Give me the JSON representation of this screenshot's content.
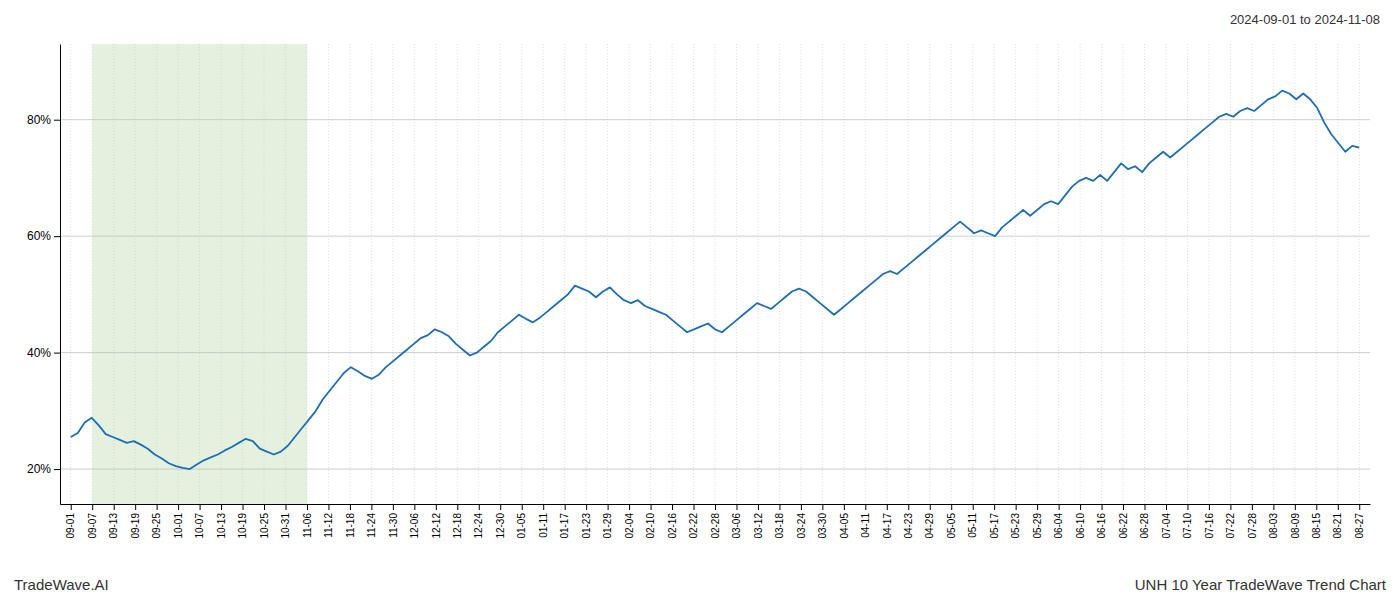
{
  "chart_data": {
    "type": "line",
    "title": "UNH 10 Year TradeWave Trend Chart",
    "subtitle": "2024-09-01 to 2024-11-08",
    "annotations": [
      "TradeWave.AI"
    ],
    "color": "#1f6eb4",
    "grid": true,
    "shade": {
      "x": [
        1,
        11
      ],
      "color": "#d4eacc"
    },
    "xlim": [
      -0.5,
      60.5
    ],
    "xticks": [
      {
        "value": 0,
        "label": "09-01"
      },
      {
        "value": 1,
        "label": "09-07"
      },
      {
        "value": 2,
        "label": "09-13"
      },
      {
        "value": 3,
        "label": "09-19"
      },
      {
        "value": 4,
        "label": "09-25"
      },
      {
        "value": 5,
        "label": "10-01"
      },
      {
        "value": 6,
        "label": "10-07"
      },
      {
        "value": 7,
        "label": "10-13"
      },
      {
        "value": 8,
        "label": "10-19"
      },
      {
        "value": 9,
        "label": "10-25"
      },
      {
        "value": 10,
        "label": "10-31"
      },
      {
        "value": 11,
        "label": "11-06"
      },
      {
        "value": 12,
        "label": "11-12"
      },
      {
        "value": 13,
        "label": "11-18"
      },
      {
        "value": 14,
        "label": "11-24"
      },
      {
        "value": 15,
        "label": "11-30"
      },
      {
        "value": 16,
        "label": "12-06"
      },
      {
        "value": 17,
        "label": "12-12"
      },
      {
        "value": 18,
        "label": "12-18"
      },
      {
        "value": 19,
        "label": "12-24"
      },
      {
        "value": 20,
        "label": "12-30"
      },
      {
        "value": 21,
        "label": "01-05"
      },
      {
        "value": 22,
        "label": "01-11"
      },
      {
        "value": 23,
        "label": "01-17"
      },
      {
        "value": 24,
        "label": "01-23"
      },
      {
        "value": 25,
        "label": "01-29"
      },
      {
        "value": 26,
        "label": "02-04"
      },
      {
        "value": 27,
        "label": "02-10"
      },
      {
        "value": 28,
        "label": "02-16"
      },
      {
        "value": 29,
        "label": "02-22"
      },
      {
        "value": 30,
        "label": "02-28"
      },
      {
        "value": 31,
        "label": "03-06"
      },
      {
        "value": 32,
        "label": "03-12"
      },
      {
        "value": 33,
        "label": "03-18"
      },
      {
        "value": 34,
        "label": "03-24"
      },
      {
        "value": 35,
        "label": "03-30"
      },
      {
        "value": 36,
        "label": "04-05"
      },
      {
        "value": 37,
        "label": "04-11"
      },
      {
        "value": 38,
        "label": "04-17"
      },
      {
        "value": 39,
        "label": "04-23"
      },
      {
        "value": 40,
        "label": "04-29"
      },
      {
        "value": 41,
        "label": "05-05"
      },
      {
        "value": 42,
        "label": "05-11"
      },
      {
        "value": 43,
        "label": "05-17"
      },
      {
        "value": 44,
        "label": "05-23"
      },
      {
        "value": 45,
        "label": "05-29"
      },
      {
        "value": 46,
        "label": "06-04"
      },
      {
        "value": 47,
        "label": "06-10"
      },
      {
        "value": 48,
        "label": "06-16"
      },
      {
        "value": 49,
        "label": "06-22"
      },
      {
        "value": 50,
        "label": "06-28"
      },
      {
        "value": 51,
        "label": "07-04"
      },
      {
        "value": 52,
        "label": "07-10"
      },
      {
        "value": 53,
        "label": "07-16"
      },
      {
        "value": 54,
        "label": "07-22"
      },
      {
        "value": 55,
        "label": "07-28"
      },
      {
        "value": 56,
        "label": "08-03"
      },
      {
        "value": 57,
        "label": "08-09"
      },
      {
        "value": 58,
        "label": "08-15"
      },
      {
        "value": 59,
        "label": "08-21"
      },
      {
        "value": 60,
        "label": "08-27"
      }
    ],
    "ylim": [
      14,
      93
    ],
    "yticks": [
      {
        "value": 20,
        "label": "20%"
      },
      {
        "value": 40,
        "label": "40%"
      },
      {
        "value": 60,
        "label": "60%"
      },
      {
        "value": 80,
        "label": "80%"
      }
    ],
    "values": [
      25.5,
      26.2,
      28.0,
      28.8,
      27.5,
      26.0,
      25.5,
      25.0,
      24.5,
      24.8,
      24.2,
      23.5,
      22.5,
      21.8,
      21.0,
      20.5,
      20.2,
      20.0,
      20.8,
      21.5,
      22.0,
      22.5,
      23.2,
      23.8,
      24.5,
      25.2,
      24.8,
      23.5,
      23.0,
      22.5,
      23.0,
      24.0,
      25.5,
      27.0,
      28.5,
      30.0,
      32.0,
      33.5,
      35.0,
      36.5,
      37.5,
      36.8,
      36.0,
      35.5,
      36.2,
      37.5,
      38.5,
      39.5,
      40.5,
      41.5,
      42.5,
      43.0,
      44.0,
      43.5,
      42.8,
      41.5,
      40.5,
      39.5,
      40.0,
      41.0,
      42.0,
      43.5,
      44.5,
      45.5,
      46.5,
      45.8,
      45.2,
      46.0,
      47.0,
      48.0,
      49.0,
      50.0,
      51.5,
      51.0,
      50.5,
      49.5,
      50.5,
      51.2,
      50.0,
      49.0,
      48.5,
      49.0,
      48.0,
      47.5,
      47.0,
      46.5,
      45.5,
      44.5,
      43.5,
      44.0,
      44.5,
      45.0,
      44.0,
      43.5,
      44.5,
      45.5,
      46.5,
      47.5,
      48.5,
      48.0,
      47.5,
      48.5,
      49.5,
      50.5,
      51.0,
      50.5,
      49.5,
      48.5,
      47.5,
      46.5,
      47.5,
      48.5,
      49.5,
      50.5,
      51.5,
      52.5,
      53.5,
      54.0,
      53.5,
      54.5,
      55.5,
      56.5,
      57.5,
      58.5,
      59.5,
      60.5,
      61.5,
      62.5,
      61.5,
      60.5,
      61.0,
      60.5,
      60.0,
      61.5,
      62.5,
      63.5,
      64.5,
      63.5,
      64.5,
      65.5,
      66.0,
      65.5,
      67.0,
      68.5,
      69.5,
      70.0,
      69.5,
      70.5,
      69.5,
      71.0,
      72.5,
      71.5,
      72.0,
      71.0,
      72.5,
      73.5,
      74.5,
      73.5,
      74.5,
      75.5,
      76.5,
      77.5,
      78.5,
      79.5,
      80.5,
      81.0,
      80.5,
      81.5,
      82.0,
      81.5,
      82.5,
      83.5,
      84.0,
      85.0,
      84.5,
      83.5,
      84.5,
      83.5,
      82.0,
      79.5,
      77.5,
      76.0,
      74.5,
      75.5,
      75.2
    ]
  }
}
